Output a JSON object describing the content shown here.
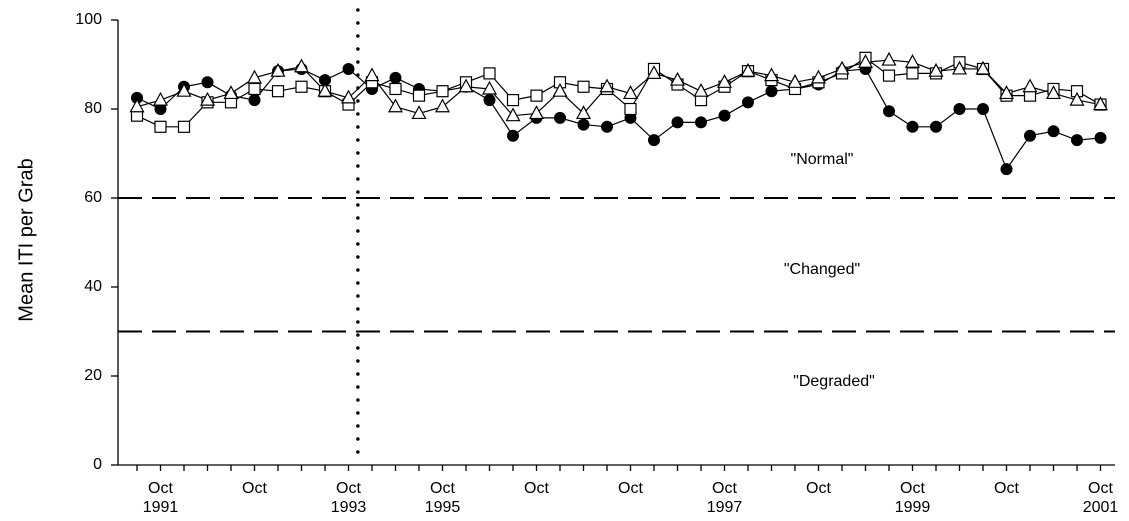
{
  "chart_data": {
    "type": "line",
    "y_label": "Mean ITI per Grab",
    "categories": [
      null,
      "Oct\n1991",
      null,
      null,
      null,
      "Oct",
      null,
      null,
      null,
      "Oct\n1993",
      null,
      null,
      null,
      "Oct\n1995",
      null,
      null,
      null,
      "Oct",
      null,
      null,
      null,
      "Oct",
      null,
      null,
      null,
      "Oct\n1997",
      null,
      null,
      null,
      "Oct",
      null,
      null,
      null,
      "Oct\n1999",
      null,
      null,
      null,
      "Oct",
      null,
      null,
      null,
      "Oct\n2001"
    ],
    "series": [
      {
        "marker": "filled-circle",
        "color": "#000000",
        "values": [
          82.5,
          80,
          85,
          86,
          83,
          82,
          88.5,
          89,
          86.5,
          89,
          84.5,
          87,
          84.5,
          84,
          85,
          82,
          74,
          78,
          78,
          76.5,
          76,
          78,
          73,
          77,
          77,
          78.5,
          81.5,
          84,
          84.5,
          85.5,
          88.5,
          89,
          79.5,
          76,
          76,
          80,
          80,
          66.5,
          74,
          75,
          73,
          73.5
        ]
      },
      {
        "marker": "open-square",
        "color": "#000000",
        "values": [
          78.5,
          76,
          76,
          81.5,
          81.5,
          84.5,
          84,
          85,
          84,
          81,
          86,
          84.5,
          83,
          84,
          86,
          88,
          82,
          83,
          86,
          85,
          84.5,
          80,
          89,
          85.5,
          82,
          85,
          88.5,
          86.5,
          84.5,
          86,
          88,
          91.5,
          87.5,
          88,
          88,
          90.5,
          89,
          83,
          83,
          84.5,
          84,
          81
        ]
      },
      {
        "marker": "open-triangle",
        "color": "#000000",
        "values": [
          80.5,
          82,
          84,
          82,
          83.5,
          87,
          88.5,
          89.5,
          84,
          82.5,
          87.5,
          80.5,
          79,
          80.5,
          85,
          84.5,
          78.5,
          79,
          84,
          79,
          85,
          83.5,
          88,
          86.5,
          84,
          86,
          88.5,
          87.5,
          86,
          87,
          89,
          90.5,
          91,
          90.5,
          88.5,
          89,
          89,
          83.5,
          85,
          83.5,
          82,
          81
        ]
      }
    ],
    "ylim": [
      0,
      100
    ],
    "yticks": [
      0,
      20,
      40,
      60,
      80,
      100
    ],
    "hlines": [
      60,
      30
    ],
    "vline": 9.4,
    "annotations": [
      "\"Normal\"",
      "\"Changed\"",
      "\"Degraded\""
    ]
  }
}
